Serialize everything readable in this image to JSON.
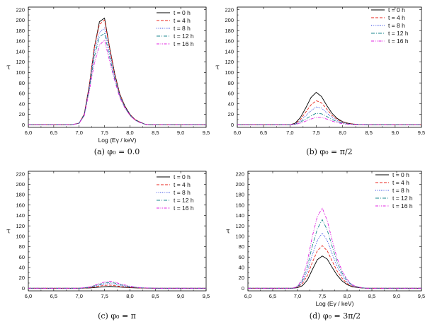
{
  "figure": {
    "panel_count": 4
  },
  "legend_labels": [
    "t = 0 h",
    "t = 4 h",
    "t = 8 h",
    "t = 12 h",
    "t = 16 h"
  ],
  "series_style": [
    {
      "name": "t = 0 h",
      "color": "#000000",
      "dash": "solid"
    },
    {
      "name": "t = 4 h",
      "color": "#e8241c",
      "dash": "dashed"
    },
    {
      "name": "t = 8 h",
      "color": "#1a32e0",
      "dash": "dotted"
    },
    {
      "name": "t = 12 h",
      "color": "#18868c",
      "dash": "dashdot"
    },
    {
      "name": "t = 16 h",
      "color": "#e020e0",
      "dash": "dashdotdot"
    }
  ],
  "chart_data": [
    {
      "type": "line",
      "caption": "(a) φ₀ = 0.0",
      "xlabel": "Log (Eγ / keV)",
      "ylabel": "τ",
      "xlim": [
        6.0,
        9.5
      ],
      "ylim": [
        -5,
        225
      ],
      "xticks": [
        "6,0",
        "6,5",
        "7,0",
        "7,5",
        "8,0",
        "8,5",
        "9,0",
        "9,5"
      ],
      "yticks": [
        "0",
        "20",
        "40",
        "60",
        "80",
        "100",
        "120",
        "140",
        "160",
        "180",
        "200",
        "220"
      ],
      "x": [
        6.0,
        6.85,
        7.0,
        7.1,
        7.2,
        7.3,
        7.4,
        7.5,
        7.6,
        7.7,
        7.8,
        7.9,
        8.0,
        8.1,
        8.2,
        8.3,
        8.4,
        9.5
      ],
      "series": [
        {
          "name": "t = 0 h",
          "values": [
            0,
            0,
            3,
            20,
            75,
            148,
            197,
            204,
            148,
            98,
            59,
            36,
            20,
            10,
            5,
            1,
            0,
            0
          ]
        },
        {
          "name": "t = 4 h",
          "values": [
            0,
            0,
            3,
            20,
            75,
            148,
            192,
            200,
            146,
            96,
            58,
            35,
            19,
            10,
            5,
            1,
            0,
            0
          ]
        },
        {
          "name": "t = 8 h",
          "values": [
            0,
            0,
            3,
            19,
            72,
            140,
            176,
            185,
            138,
            92,
            56,
            34,
            19,
            9,
            5,
            1,
            0,
            0
          ]
        },
        {
          "name": "t = 12 h",
          "values": [
            0,
            0,
            3,
            18,
            68,
            130,
            168,
            175,
            130,
            88,
            54,
            33,
            18,
            9,
            4,
            1,
            0,
            0
          ]
        },
        {
          "name": "t = 16 h",
          "values": [
            0,
            0,
            3,
            17,
            64,
            118,
            152,
            162,
            122,
            84,
            52,
            32,
            18,
            9,
            4,
            1,
            0,
            0
          ]
        }
      ]
    },
    {
      "type": "line",
      "caption": "(b) φ₀ = π/2",
      "xlabel": "",
      "ylabel": "τ",
      "xlim": [
        6.0,
        9.5
      ],
      "ylim": [
        -5,
        225
      ],
      "xticks": [
        "6,0",
        "6,5",
        "7,0",
        "7,5",
        "8,0",
        "8,5",
        "9,0",
        "9,5"
      ],
      "yticks": [
        "0",
        "20",
        "40",
        "60",
        "80",
        "100",
        "120",
        "140",
        "160",
        "180",
        "200",
        "220"
      ],
      "x": [
        6.0,
        7.0,
        7.1,
        7.2,
        7.3,
        7.4,
        7.5,
        7.6,
        7.7,
        7.8,
        7.9,
        8.0,
        8.1,
        8.2,
        8.3,
        8.4,
        8.5,
        9.5
      ],
      "series": [
        {
          "name": "t = 0 h",
          "values": [
            0,
            0,
            3,
            14,
            32,
            52,
            62,
            54,
            37,
            22,
            12,
            6,
            3,
            1.5,
            0.7,
            0.3,
            0,
            0
          ]
        },
        {
          "name": "t = 4 h",
          "values": [
            0,
            0,
            2,
            10,
            24,
            38,
            46,
            42,
            30,
            18,
            10,
            5,
            2.5,
            1.2,
            0.5,
            0.2,
            0,
            0
          ]
        },
        {
          "name": "t = 8 h",
          "values": [
            0,
            0,
            2,
            7,
            17,
            27,
            34,
            32,
            23,
            14,
            8,
            4,
            2,
            1,
            0.4,
            0.2,
            0,
            0
          ]
        },
        {
          "name": "t = 12 h",
          "values": [
            0,
            0,
            1,
            5,
            11,
            17,
            22,
            21,
            16,
            10,
            6,
            3,
            1.5,
            0.7,
            0.3,
            0.1,
            0,
            0
          ]
        },
        {
          "name": "t = 16 h",
          "values": [
            0,
            0,
            1,
            3,
            7,
            11,
            14,
            14,
            11,
            7,
            4,
            2,
            1,
            0.5,
            0.2,
            0.1,
            0,
            0
          ]
        }
      ]
    },
    {
      "type": "line",
      "caption": "(c) φ₀ = π",
      "xlabel": "",
      "ylabel": "τ",
      "xlim": [
        6.0,
        9.5
      ],
      "ylim": [
        -5,
        225
      ],
      "xticks": [
        "6,0",
        "6,5",
        "7,0",
        "7,5",
        "8,0",
        "8,5",
        "9,0",
        "9,5"
      ],
      "yticks": [
        "0",
        "20",
        "40",
        "60",
        "80",
        "100",
        "120",
        "140",
        "160",
        "180",
        "200",
        "220"
      ],
      "x": [
        6.0,
        7.0,
        7.2,
        7.4,
        7.5,
        7.6,
        7.7,
        7.8,
        8.0,
        8.2,
        8.5,
        9.5
      ],
      "series": [
        {
          "name": "t = 0 h",
          "values": [
            0,
            0,
            0.5,
            2,
            3,
            3.5,
            3,
            2.2,
            1,
            0.3,
            0,
            0
          ]
        },
        {
          "name": "t = 4 h",
          "values": [
            0,
            0,
            1,
            4,
            5.5,
            6,
            5,
            3.5,
            1.5,
            0.5,
            0,
            0
          ]
        },
        {
          "name": "t = 8 h",
          "values": [
            0,
            0,
            1.5,
            6,
            8,
            9,
            8,
            5.5,
            2.5,
            0.8,
            0,
            0
          ]
        },
        {
          "name": "t = 12 h",
          "values": [
            0,
            0,
            2,
            7.5,
            10,
            11,
            10,
            7,
            3,
            1,
            0,
            0
          ]
        },
        {
          "name": "t = 16 h",
          "values": [
            0,
            0,
            2.5,
            9,
            12,
            13.5,
            12,
            8.5,
            4,
            1.2,
            0,
            0
          ]
        }
      ]
    },
    {
      "type": "line",
      "caption": "(d) φ₀ = 3π/2",
      "xlabel": "Log (Eγ / keV)",
      "ylabel": "τ",
      "xlim": [
        6.0,
        9.5
      ],
      "ylim": [
        -5,
        225
      ],
      "xticks": [
        "6,0",
        "6,5",
        "7,0",
        "7,5",
        "8,0",
        "8,5",
        "9,0",
        "9,5"
      ],
      "yticks": [
        "0",
        "20",
        "40",
        "60",
        "80",
        "100",
        "120",
        "140",
        "160",
        "180",
        "200",
        "220"
      ],
      "x": [
        6.0,
        6.9,
        7.0,
        7.1,
        7.2,
        7.3,
        7.4,
        7.5,
        7.6,
        7.7,
        7.8,
        7.9,
        8.0,
        8.1,
        8.2,
        8.3,
        8.4,
        9.5
      ],
      "series": [
        {
          "name": "t = 0 h",
          "values": [
            0,
            0,
            1,
            5,
            16,
            36,
            55,
            62,
            56,
            40,
            25,
            14,
            7,
            3,
            1.5,
            0.5,
            0,
            0
          ]
        },
        {
          "name": "t = 4 h",
          "values": [
            0,
            0,
            2,
            9,
            25,
            50,
            72,
            82,
            72,
            52,
            33,
            19,
            9,
            4,
            2,
            0.8,
            0,
            0
          ]
        },
        {
          "name": "t = 8 h",
          "values": [
            0,
            0,
            2,
            12,
            33,
            65,
            92,
            106,
            92,
            66,
            42,
            24,
            12,
            5,
            2,
            1,
            0,
            0
          ]
        },
        {
          "name": "t = 12 h",
          "values": [
            0,
            0,
            3,
            15,
            42,
            82,
            114,
            132,
            112,
            80,
            50,
            29,
            15,
            6,
            3,
            1,
            0,
            0
          ]
        },
        {
          "name": "t = 16 h",
          "values": [
            0,
            0,
            4,
            18,
            52,
            100,
            138,
            154,
            130,
            92,
            57,
            33,
            17,
            7,
            3,
            1,
            0,
            0
          ]
        }
      ]
    }
  ]
}
